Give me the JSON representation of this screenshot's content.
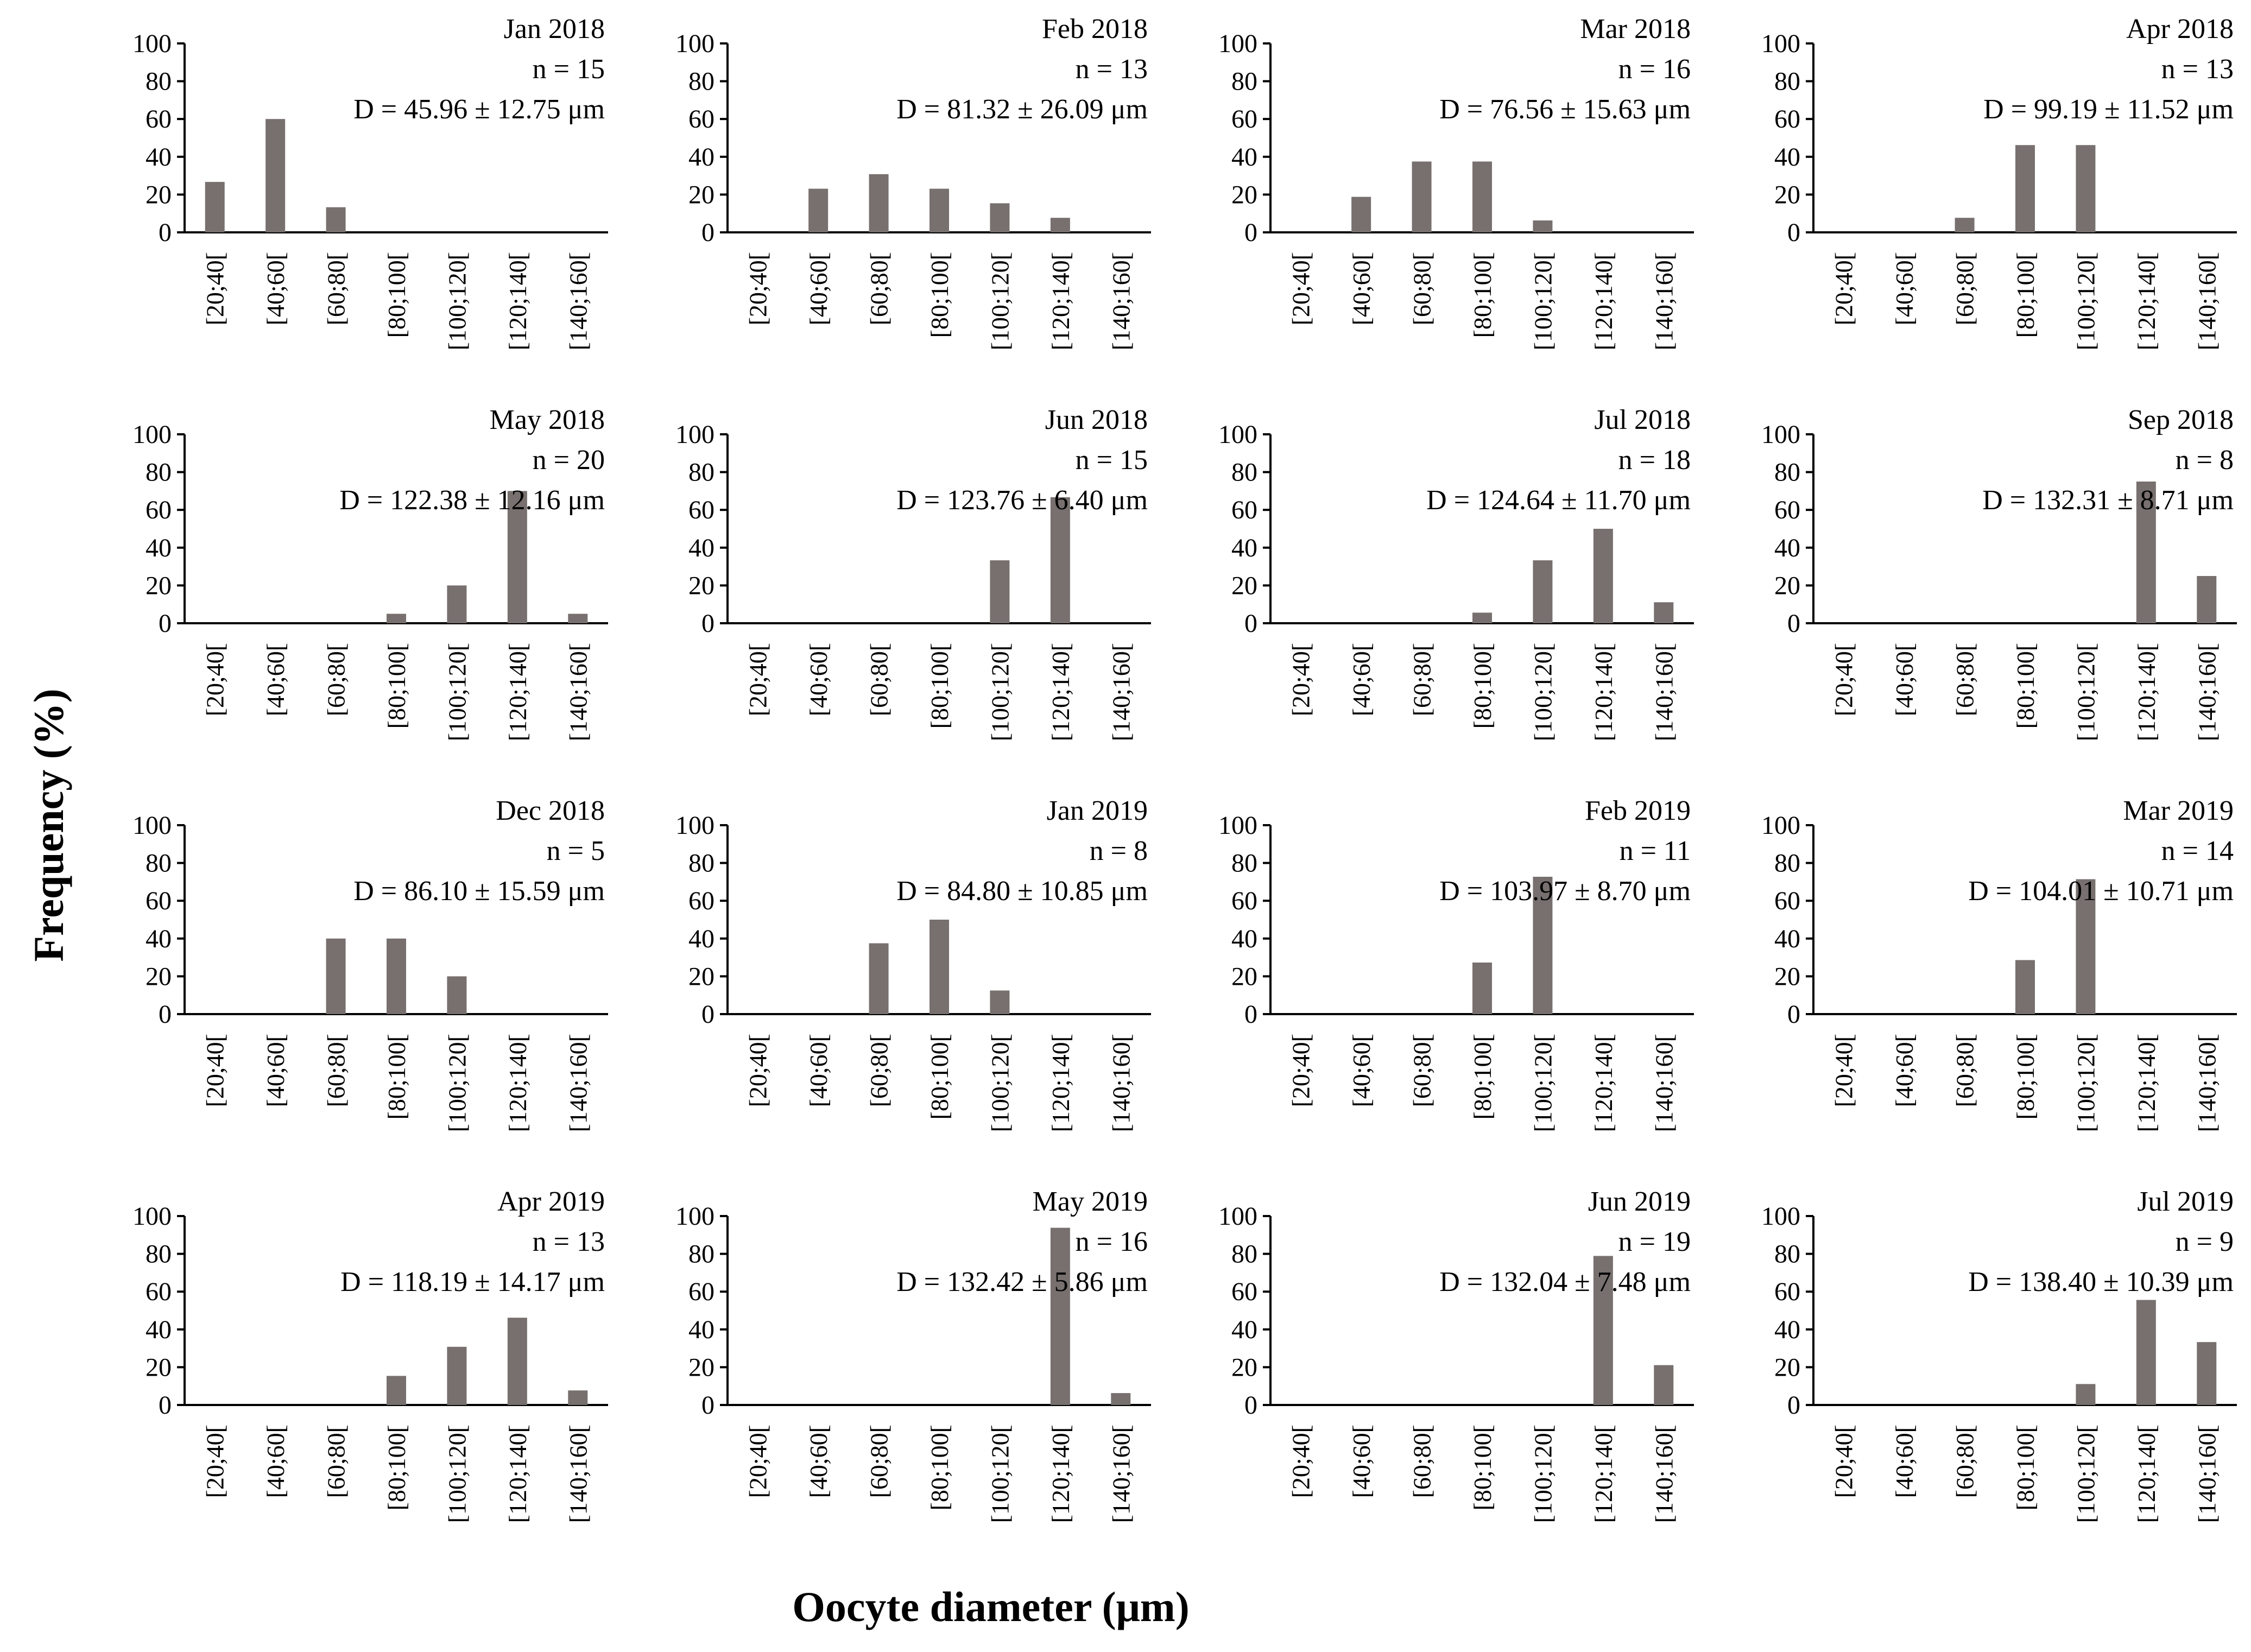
{
  "figure": {
    "ylabel": "Frequency (%)",
    "xlabel": "Oocyte diameter (μm)",
    "bar_color": "#77706f",
    "axis_color": "#000000"
  },
  "chart_data": [
    {
      "type": "bar",
      "title": "Jan 2018",
      "n_label": "n = 15",
      "d_label": "D = 45.96 ± 12.75 μm",
      "categories": [
        "[20;40[",
        "[40;60[",
        "[60;80[",
        "[80;100[",
        "[100;120[",
        "[120;140[",
        "[140;160["
      ],
      "values": [
        26.7,
        60.0,
        13.3,
        0,
        0,
        0,
        0
      ],
      "yticks": [
        "0",
        "20",
        "40",
        "60",
        "80",
        "100"
      ],
      "ylim": [
        0,
        100
      ],
      "xlabel": "Oocyte diameter (μm)",
      "ylabel": "Frequency (%)"
    },
    {
      "type": "bar",
      "title": "Feb 2018",
      "n_label": "n = 13",
      "d_label": "D = 81.32 ± 26.09 μm",
      "categories": [
        "[20;40[",
        "[40;60[",
        "[60;80[",
        "[80;100[",
        "[100;120[",
        "[120;140[",
        "[140;160["
      ],
      "values": [
        0,
        23.1,
        30.8,
        23.1,
        15.4,
        7.7,
        0
      ],
      "yticks": [
        "0",
        "20",
        "40",
        "60",
        "80",
        "100"
      ],
      "ylim": [
        0,
        100
      ],
      "xlabel": "Oocyte diameter (μm)",
      "ylabel": "Frequency (%)"
    },
    {
      "type": "bar",
      "title": "Mar 2018",
      "n_label": "n = 16",
      "d_label": "D = 76.56 ± 15.63 μm",
      "categories": [
        "[20;40[",
        "[40;60[",
        "[60;80[",
        "[80;100[",
        "[100;120[",
        "[120;140[",
        "[140;160["
      ],
      "values": [
        0,
        18.8,
        37.5,
        37.5,
        6.3,
        0,
        0
      ],
      "yticks": [
        "0",
        "20",
        "40",
        "60",
        "80",
        "100"
      ],
      "ylim": [
        0,
        100
      ],
      "xlabel": "Oocyte diameter (μm)",
      "ylabel": "Frequency (%)"
    },
    {
      "type": "bar",
      "title": "Apr 2018",
      "n_label": "n = 13",
      "d_label": "D = 99.19 ± 11.52 μm",
      "categories": [
        "[20;40[",
        "[40;60[",
        "[60;80[",
        "[80;100[",
        "[100;120[",
        "[120;140[",
        "[140;160["
      ],
      "values": [
        0,
        0,
        7.7,
        46.2,
        46.2,
        0,
        0
      ],
      "yticks": [
        "0",
        "20",
        "40",
        "60",
        "80",
        "100"
      ],
      "ylim": [
        0,
        100
      ],
      "xlabel": "Oocyte diameter (μm)",
      "ylabel": "Frequency (%)"
    },
    {
      "type": "bar",
      "title": "May 2018",
      "n_label": "n = 20",
      "d_label": "D = 122.38 ± 12.16 μm",
      "categories": [
        "[20;40[",
        "[40;60[",
        "[60;80[",
        "[80;100[",
        "[100;120[",
        "[120;140[",
        "[140;160["
      ],
      "values": [
        0,
        0,
        0,
        5,
        20,
        70,
        5
      ],
      "yticks": [
        "0",
        "20",
        "40",
        "60",
        "80",
        "100"
      ],
      "ylim": [
        0,
        100
      ],
      "xlabel": "Oocyte diameter (μm)",
      "ylabel": "Frequency (%)"
    },
    {
      "type": "bar",
      "title": "Jun 2018",
      "n_label": "n = 15",
      "d_label": "D = 123.76 ± 6.40 μm",
      "categories": [
        "[20;40[",
        "[40;60[",
        "[60;80[",
        "[80;100[",
        "[100;120[",
        "[120;140[",
        "[140;160["
      ],
      "values": [
        0,
        0,
        0,
        0,
        33.3,
        66.7,
        0
      ],
      "yticks": [
        "0",
        "20",
        "40",
        "60",
        "80",
        "100"
      ],
      "ylim": [
        0,
        100
      ],
      "xlabel": "Oocyte diameter (μm)",
      "ylabel": "Frequency (%)"
    },
    {
      "type": "bar",
      "title": "Jul 2018",
      "n_label": "n = 18",
      "d_label": "D = 124.64 ± 11.70 μm",
      "categories": [
        "[20;40[",
        "[40;60[",
        "[60;80[",
        "[80;100[",
        "[100;120[",
        "[120;140[",
        "[140;160["
      ],
      "values": [
        0,
        0,
        0,
        5.6,
        33.3,
        50,
        11.1
      ],
      "yticks": [
        "0",
        "20",
        "40",
        "60",
        "80",
        "100"
      ],
      "ylim": [
        0,
        100
      ],
      "xlabel": "Oocyte diameter (μm)",
      "ylabel": "Frequency (%)"
    },
    {
      "type": "bar",
      "title": "Sep 2018",
      "n_label": "n = 8",
      "d_label": "D = 132.31 ± 8.71 μm",
      "categories": [
        "[20;40[",
        "[40;60[",
        "[60;80[",
        "[80;100[",
        "[100;120[",
        "[120;140[",
        "[140;160["
      ],
      "values": [
        0,
        0,
        0,
        0,
        0,
        75,
        25
      ],
      "yticks": [
        "0",
        "20",
        "40",
        "60",
        "80",
        "100"
      ],
      "ylim": [
        0,
        100
      ],
      "xlabel": "Oocyte diameter (μm)",
      "ylabel": "Frequency (%)"
    },
    {
      "type": "bar",
      "title": "Dec 2018",
      "n_label": "n = 5",
      "d_label": "D = 86.10 ± 15.59 μm",
      "categories": [
        "[20;40[",
        "[40;60[",
        "[60;80[",
        "[80;100[",
        "[100;120[",
        "[120;140[",
        "[140;160["
      ],
      "values": [
        0,
        0,
        40,
        40,
        20,
        0,
        0
      ],
      "yticks": [
        "0",
        "20",
        "40",
        "60",
        "80",
        "100"
      ],
      "ylim": [
        0,
        100
      ],
      "xlabel": "Oocyte diameter (μm)",
      "ylabel": "Frequency (%)"
    },
    {
      "type": "bar",
      "title": "Jan 2019",
      "n_label": "n = 8",
      "d_label": "D = 84.80 ± 10.85 μm",
      "categories": [
        "[20;40[",
        "[40;60[",
        "[60;80[",
        "[80;100[",
        "[100;120[",
        "[120;140[",
        "[140;160["
      ],
      "values": [
        0,
        0,
        37.5,
        50,
        12.5,
        0,
        0
      ],
      "yticks": [
        "0",
        "20",
        "40",
        "60",
        "80",
        "100"
      ],
      "ylim": [
        0,
        100
      ],
      "xlabel": "Oocyte diameter (μm)",
      "ylabel": "Frequency (%)"
    },
    {
      "type": "bar",
      "title": "Feb 2019",
      "n_label": "n = 11",
      "d_label": "D = 103.97 ± 8.70 μm",
      "categories": [
        "[20;40[",
        "[40;60[",
        "[60;80[",
        "[80;100[",
        "[100;120[",
        "[120;140[",
        "[140;160["
      ],
      "values": [
        0,
        0,
        0,
        27.3,
        72.7,
        0,
        0
      ],
      "yticks": [
        "0",
        "20",
        "40",
        "60",
        "80",
        "100"
      ],
      "ylim": [
        0,
        100
      ],
      "xlabel": "Oocyte diameter (μm)",
      "ylabel": "Frequency (%)"
    },
    {
      "type": "bar",
      "title": "Mar 2019",
      "n_label": "n = 14",
      "d_label": "D = 104.01 ± 10.71 μm",
      "categories": [
        "[20;40[",
        "[40;60[",
        "[60;80[",
        "[80;100[",
        "[100;120[",
        "[120;140[",
        "[140;160["
      ],
      "values": [
        0,
        0,
        0,
        28.6,
        71.4,
        0,
        0
      ],
      "yticks": [
        "0",
        "20",
        "40",
        "60",
        "80",
        "100"
      ],
      "ylim": [
        0,
        100
      ],
      "xlabel": "Oocyte diameter (μm)",
      "ylabel": "Frequency (%)"
    },
    {
      "type": "bar",
      "title": "Apr 2019",
      "n_label": "n = 13",
      "d_label": "D = 118.19 ± 14.17 μm",
      "categories": [
        "[20;40[",
        "[40;60[",
        "[60;80[",
        "[80;100[",
        "[100;120[",
        "[120;140[",
        "[140;160["
      ],
      "values": [
        0,
        0,
        0,
        15.4,
        30.8,
        46.2,
        7.7
      ],
      "yticks": [
        "0",
        "20",
        "40",
        "60",
        "80",
        "100"
      ],
      "ylim": [
        0,
        100
      ],
      "xlabel": "Oocyte diameter (μm)",
      "ylabel": "Frequency (%)"
    },
    {
      "type": "bar",
      "title": "May 2019",
      "n_label": "n = 16",
      "d_label": "D = 132.42 ± 5.86 μm",
      "categories": [
        "[20;40[",
        "[40;60[",
        "[60;80[",
        "[80;100[",
        "[100;120[",
        "[120;140[",
        "[140;160["
      ],
      "values": [
        0,
        0,
        0,
        0,
        0,
        93.8,
        6.3
      ],
      "yticks": [
        "0",
        "20",
        "40",
        "60",
        "80",
        "100"
      ],
      "ylim": [
        0,
        100
      ],
      "xlabel": "Oocyte diameter (μm)",
      "ylabel": "Frequency (%)"
    },
    {
      "type": "bar",
      "title": "Jun 2019",
      "n_label": "n = 19",
      "d_label": "D = 132.04 ± 7.48 μm",
      "categories": [
        "[20;40[",
        "[40;60[",
        "[60;80[",
        "[80;100[",
        "[100;120[",
        "[120;140[",
        "[140;160["
      ],
      "values": [
        0,
        0,
        0,
        0,
        0,
        78.9,
        21.1
      ],
      "yticks": [
        "0",
        "20",
        "40",
        "60",
        "80",
        "100"
      ],
      "ylim": [
        0,
        100
      ],
      "xlabel": "Oocyte diameter (μm)",
      "ylabel": "Frequency (%)"
    },
    {
      "type": "bar",
      "title": "Jul 2019",
      "n_label": "n = 9",
      "d_label": "D = 138.40 ± 10.39 μm",
      "categories": [
        "[20;40[",
        "[40;60[",
        "[60;80[",
        "[80;100[",
        "[100;120[",
        "[120;140[",
        "[140;160["
      ],
      "values": [
        0,
        0,
        0,
        0,
        11.1,
        55.6,
        33.3
      ],
      "yticks": [
        "0",
        "20",
        "40",
        "60",
        "80",
        "100"
      ],
      "ylim": [
        0,
        100
      ],
      "xlabel": "Oocyte diameter (μm)",
      "ylabel": "Frequency (%)"
    }
  ]
}
